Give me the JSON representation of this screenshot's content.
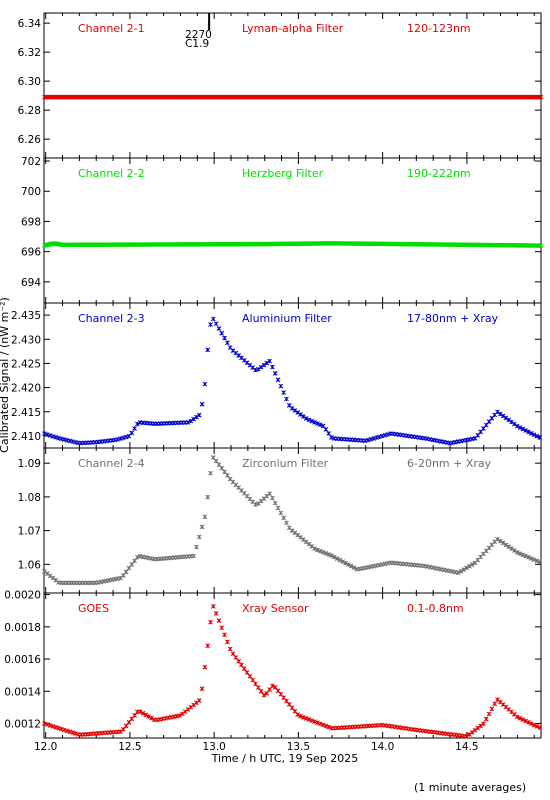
{
  "footer_note": "(1 minute averages)",
  "chart_data": {
    "type": "scatter",
    "xlabel": "Time / h UTC, 19 Sep 2025",
    "ylabel": "Calibrated Signal / (nW m⁻²)",
    "xlim": [
      11.99,
      14.94
    ],
    "x_ticks": [
      "12.0",
      "12.5",
      "13.0",
      "13.5",
      "14.0",
      "14.5"
    ],
    "marker_annotation": {
      "x": 12.97,
      "lines": [
        "2270",
        "C1.9"
      ]
    },
    "panels": [
      {
        "channel": "Channel 2-1",
        "filter": "Lyman-alpha Filter",
        "band": "120-123nm",
        "color": "#e00000",
        "ylim": [
          6.247,
          6.347
        ],
        "y_ticks": [
          "6.26",
          "6.28",
          "6.30",
          "6.32",
          "6.34"
        ],
        "points": [
          [
            11.99,
            6.289
          ],
          [
            14.94,
            6.289
          ]
        ]
      },
      {
        "channel": "Channel 2-2",
        "filter": "Herzberg Filter",
        "band": "190-222nm",
        "color": "#00dd00",
        "ylim": [
          692.6,
          702.2
        ],
        "y_ticks": [
          "694",
          "696",
          "698",
          "700",
          "702"
        ],
        "points": [
          [
            11.99,
            696.4
          ],
          [
            12.05,
            696.55
          ],
          [
            12.1,
            696.45
          ],
          [
            13.3,
            696.5
          ],
          [
            13.7,
            696.55
          ],
          [
            14.94,
            696.4
          ]
        ]
      },
      {
        "channel": "Channel 2-3",
        "filter": "Aluminium Filter",
        "band": "17-80nm + Xray",
        "color": "#0000cc",
        "ylim": [
          2.4075,
          2.4375
        ],
        "y_ticks": [
          "2.410",
          "2.415",
          "2.420",
          "2.425",
          "2.430",
          "2.435"
        ],
        "points": [
          [
            11.99,
            2.4105
          ],
          [
            12.08,
            2.4095
          ],
          [
            12.2,
            2.4085
          ],
          [
            12.3,
            2.4087
          ],
          [
            12.42,
            2.4092
          ],
          [
            12.5,
            2.41
          ],
          [
            12.55,
            2.4128
          ],
          [
            12.65,
            2.4125
          ],
          [
            12.85,
            2.4128
          ],
          [
            12.92,
            2.4145
          ],
          [
            12.95,
            2.422
          ],
          [
            12.97,
            2.432
          ],
          [
            12.99,
            2.4345
          ],
          [
            13.1,
            2.428
          ],
          [
            13.25,
            2.4235
          ],
          [
            13.33,
            2.4255
          ],
          [
            13.45,
            2.416
          ],
          [
            13.55,
            2.4135
          ],
          [
            13.65,
            2.412
          ],
          [
            13.7,
            2.4095
          ],
          [
            13.9,
            2.409
          ],
          [
            14.05,
            2.4105
          ],
          [
            14.25,
            2.4095
          ],
          [
            14.4,
            2.4085
          ],
          [
            14.55,
            2.4095
          ],
          [
            14.68,
            2.415
          ],
          [
            14.8,
            2.412
          ],
          [
            14.94,
            2.4095
          ]
        ]
      },
      {
        "channel": "Channel 2-4",
        "filter": "Zirconium Filter",
        "band": "6-20nm + Xray",
        "color": "#707070",
        "ylim": [
          1.0515,
          1.0945
        ],
        "y_ticks": [
          "1.06",
          "1.07",
          "1.08",
          "1.09"
        ],
        "points": [
          [
            11.99,
            1.058
          ],
          [
            12.08,
            1.0545
          ],
          [
            12.3,
            1.0545
          ],
          [
            12.45,
            1.056
          ],
          [
            12.55,
            1.0625
          ],
          [
            12.65,
            1.0615
          ],
          [
            12.88,
            1.0625
          ],
          [
            12.95,
            1.075
          ],
          [
            12.99,
            1.092
          ],
          [
            13.1,
            1.085
          ],
          [
            13.25,
            1.0775
          ],
          [
            13.33,
            1.081
          ],
          [
            13.45,
            1.0705
          ],
          [
            13.6,
            1.0645
          ],
          [
            13.7,
            1.0625
          ],
          [
            13.85,
            1.0585
          ],
          [
            14.05,
            1.0605
          ],
          [
            14.25,
            1.0595
          ],
          [
            14.45,
            1.0575
          ],
          [
            14.55,
            1.0605
          ],
          [
            14.68,
            1.0675
          ],
          [
            14.8,
            1.0635
          ],
          [
            14.94,
            1.0605
          ]
        ]
      },
      {
        "channel": "GOES",
        "filter": "Xray Sensor",
        "band": "0.1-0.8nm",
        "color": "#e00000",
        "ylim": [
          0.00111,
          0.00201
        ],
        "y_ticks": [
          "0.0012",
          "0.0014",
          "0.0016",
          "0.0018",
          "0.0020"
        ],
        "points": [
          [
            11.99,
            0.0012
          ],
          [
            12.2,
            0.00113
          ],
          [
            12.45,
            0.00115
          ],
          [
            12.55,
            0.00128
          ],
          [
            12.65,
            0.00122
          ],
          [
            12.8,
            0.00125
          ],
          [
            12.92,
            0.00135
          ],
          [
            12.97,
            0.00175
          ],
          [
            12.99,
            0.00194
          ],
          [
            13.1,
            0.00165
          ],
          [
            13.3,
            0.00137
          ],
          [
            13.35,
            0.00144
          ],
          [
            13.5,
            0.00125
          ],
          [
            13.7,
            0.00117
          ],
          [
            14.0,
            0.00119
          ],
          [
            14.2,
            0.00116
          ],
          [
            14.5,
            0.00112
          ],
          [
            14.6,
            0.0012
          ],
          [
            14.68,
            0.00135
          ],
          [
            14.8,
            0.00124
          ],
          [
            14.94,
            0.00117
          ]
        ]
      }
    ]
  }
}
